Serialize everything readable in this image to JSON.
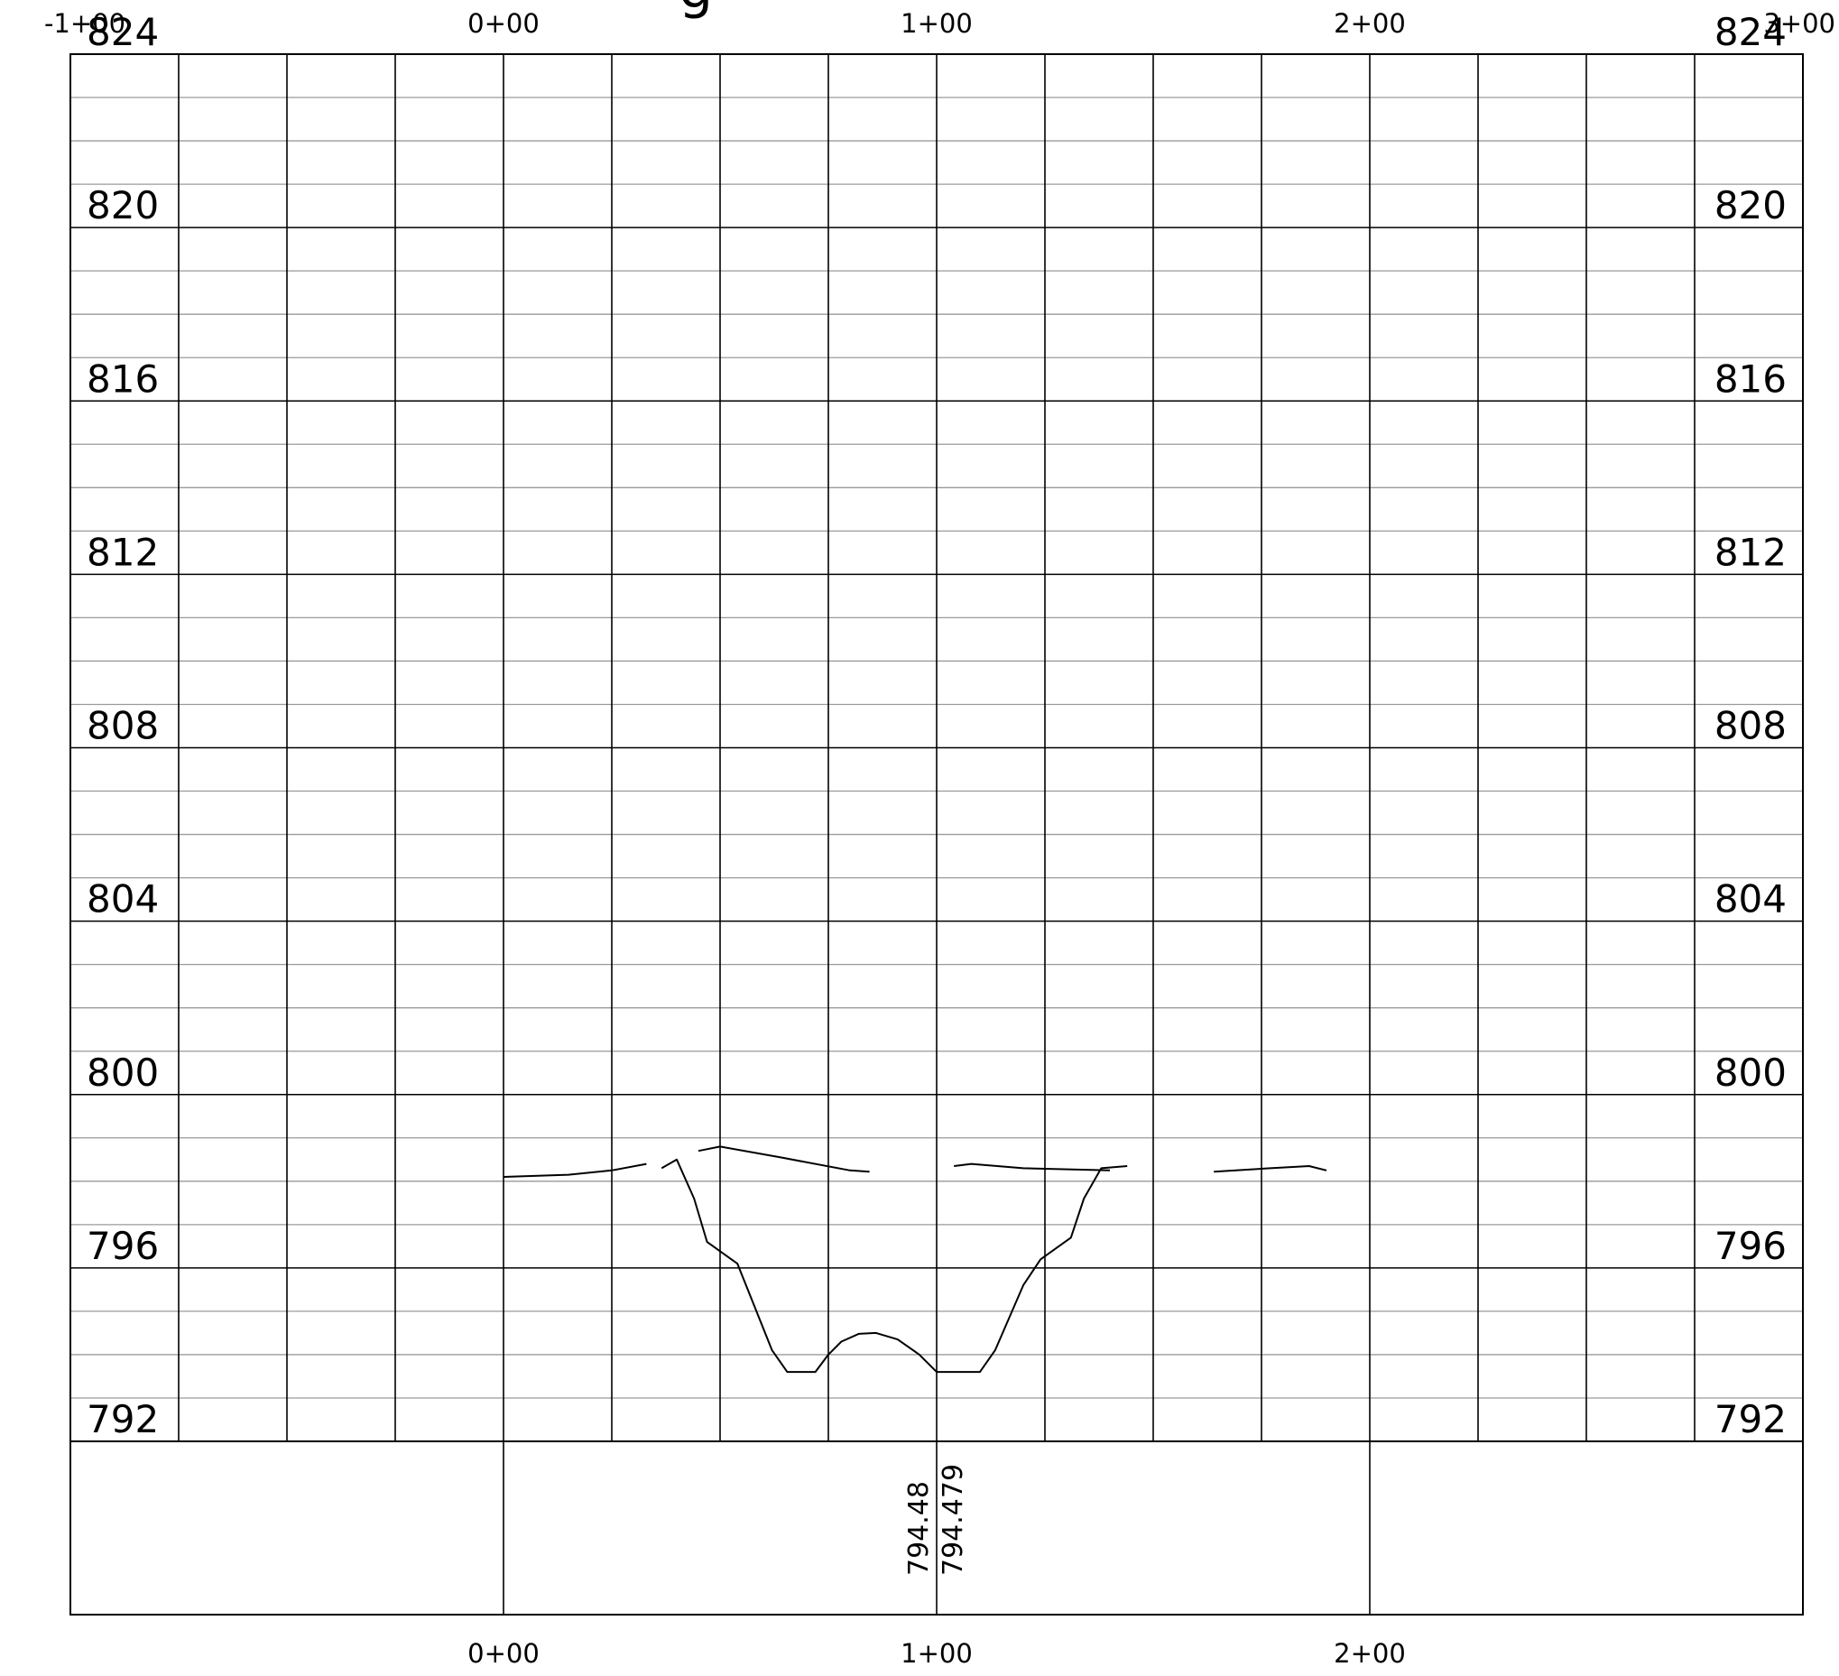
{
  "chart_data": {
    "type": "line",
    "title_fragment": "g",
    "xlabel": "",
    "ylabel": "",
    "xlim": [
      -100,
      300
    ],
    "ylim": [
      792,
      824
    ],
    "x_ticks_top": [
      "-1+00",
      "0+00",
      "1+00",
      "2+00",
      "3+00"
    ],
    "x_ticks_bottom": [
      "0+00",
      "1+00",
      "2+00"
    ],
    "y_ticks": [
      "824",
      "820",
      "816",
      "812",
      "808",
      "804",
      "800",
      "796",
      "792"
    ],
    "grid": true,
    "elevation_values": [
      "794.48",
      "794.479"
    ],
    "series": [
      {
        "values": [
          [
            0,
            798.1
          ],
          [
            15,
            798.15
          ],
          [
            25,
            798.25
          ],
          [
            33,
            798.4
          ]
        ]
      },
      {
        "values": [
          [
            36.5,
            798.3
          ],
          [
            40,
            798.5
          ],
          [
            44,
            797.6
          ],
          [
            47,
            796.6
          ],
          [
            54,
            796.1
          ],
          [
            62,
            794.1
          ],
          [
            65.5,
            793.6
          ],
          [
            72,
            793.6
          ],
          [
            75,
            794.0
          ],
          [
            78,
            794.3
          ],
          [
            82,
            794.48
          ],
          [
            86,
            794.5
          ],
          [
            91,
            794.35
          ],
          [
            96,
            794.0
          ],
          [
            100,
            793.6
          ],
          [
            110,
            793.6
          ],
          [
            113.5,
            794.1
          ],
          [
            120,
            795.6
          ],
          [
            124,
            796.2
          ],
          [
            131,
            796.7
          ],
          [
            134,
            797.6
          ],
          [
            138,
            798.3
          ],
          [
            144,
            798.35
          ]
        ]
      },
      {
        "values": [
          [
            45,
            798.7
          ],
          [
            50,
            798.8
          ],
          [
            64,
            798.55
          ],
          [
            80,
            798.25
          ],
          [
            84.5,
            798.22
          ]
        ]
      },
      {
        "values": [
          [
            104,
            798.35
          ],
          [
            108,
            798.4
          ],
          [
            120,
            798.3
          ],
          [
            140,
            798.25
          ]
        ]
      },
      {
        "values": [
          [
            164,
            798.22
          ],
          [
            177,
            798.3
          ],
          [
            186,
            798.35
          ],
          [
            190,
            798.25
          ]
        ]
      }
    ]
  }
}
